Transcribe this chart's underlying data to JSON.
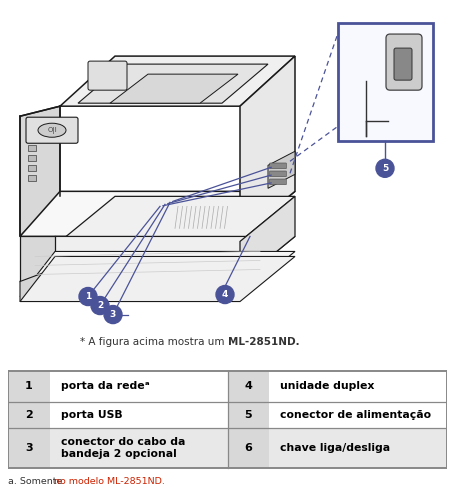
{
  "bg_color": "#ffffff",
  "caption_normal": "* A figura acima mostra um ",
  "caption_bold": "ML-2851ND.",
  "footnote_normal": "a. Somente ",
  "footnote_red": "no modelo ML-2851ND.",
  "label_color": "#4b5398",
  "box_color": "#4b5398",
  "dashed_color": "#4b5398",
  "table_border": "#888888",
  "table_num_bg": "#d8d8d8",
  "table_row3_bg": "#e8e8e8",
  "table_text": "#000000",
  "footnote_red_color": "#cc2200",
  "rows": [
    {
      "num": "1",
      "label": "porta da redeᵃ",
      "num2": "4",
      "label2": "unidade duplex"
    },
    {
      "num": "2",
      "label": "porta USB",
      "num2": "5",
      "label2": "conector de alimentação"
    },
    {
      "num": "3",
      "label": "conector do cabo da\nbandeja 2 opcional",
      "num2": "6",
      "label2": "chave liga/desliga"
    }
  ]
}
